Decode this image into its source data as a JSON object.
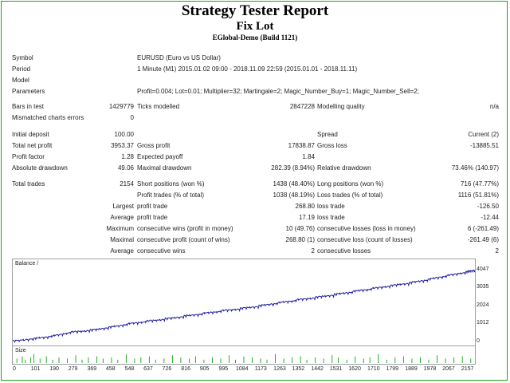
{
  "header": {
    "title": "Strategy Tester Report",
    "subtitle": "Fix Lot",
    "build": "EGlobal-Demo (Build 1121)"
  },
  "info": {
    "symbol_label": "Symbol",
    "symbol_value": "EURUSD (Euro vs US Dollar)",
    "period_label": "Period",
    "period_value": "1 Minute (M1) 2015.01.02 09:00 - 2018.11.09 22:59 (2015.01.01 - 2018.11.11)",
    "model_label": "Model",
    "model_value": "",
    "params_label": "Parameters",
    "params_value": "Profit=0.004; Lot=0.01; Multiplier=32; Martingale=2; Magic_Number_Buy=1; Magic_Number_Sell=2;"
  },
  "stats": {
    "bars_label": "Bars in test",
    "bars_value": "1429779",
    "ticks_label": "Ticks modelled",
    "ticks_value": "2847228",
    "quality_label": "Modelling quality",
    "quality_value": "n/a",
    "mismatch_label": "Mismatched charts errors",
    "mismatch_value": "0",
    "deposit_label": "Initial deposit",
    "deposit_value": "100.00",
    "spread_label": "Spread",
    "spread_value": "Current (2)",
    "netprofit_label": "Total net profit",
    "netprofit_value": "3953.37",
    "grossprofit_label": "Gross profit",
    "grossprofit_value": "17838.87",
    "grossloss_label": "Gross loss",
    "grossloss_value": "-13885.51",
    "pf_label": "Profit factor",
    "pf_value": "1.28",
    "payoff_label": "Expected payoff",
    "payoff_value": "1.84",
    "absdd_label": "Absolute drawdown",
    "absdd_value": "49.06",
    "maxdd_label": "Maximal drawdown",
    "maxdd_value": "282.39 (8.94%)",
    "reldd_label": "Relative drawdown",
    "reldd_value": "73.46% (140.97)",
    "trades_label": "Total trades",
    "trades_value": "2154",
    "short_label": "Short positions (won %)",
    "short_value": "1438 (48.40%)",
    "long_label": "Long positions (won %)",
    "long_value": "716 (47.77%)",
    "profit_trades_label": "Profit trades (% of total)",
    "profit_trades_value": "1038 (48.19%)",
    "loss_trades_label": "Loss trades (% of total)",
    "loss_trades_value": "1116 (51.81%)",
    "largest_label": "Largest",
    "largest_profit_label": "profit trade",
    "largest_profit_value": "268.80",
    "largest_loss_label": "loss trade",
    "largest_loss_value": "-126.50",
    "average_label": "Average",
    "average_profit_label": "profit trade",
    "average_profit_value": "17.19",
    "average_loss_label": "loss trade",
    "average_loss_value": "-12.44",
    "maximum_label": "Maximum",
    "max_cw_label": "consecutive wins (profit in money)",
    "max_cw_value": "10 (49.76)",
    "max_cl_label": "consecutive losses (loss in money)",
    "max_cl_value": "6 (-261.49)",
    "maximal_label": "Maximal",
    "maximal_cp_label": "consecutive profit (count of wins)",
    "maximal_cp_value": "268.80 (1)",
    "maximal_cl_label": "consecutive loss (count of losses)",
    "maximal_cl_value": "-261.49 (6)",
    "average2_label": "Average",
    "avg_cw_label": "consecutive wins",
    "avg_cw_value": "2",
    "avg_cl_label": "consecutive losses",
    "avg_cl_value": "2"
  },
  "chart_data": {
    "type": "line",
    "title": "Balance /",
    "size_label": "Size",
    "x_ticks": [
      "0",
      "101",
      "190",
      "279",
      "369",
      "458",
      "548",
      "637",
      "726",
      "816",
      "905",
      "995",
      "1084",
      "1173",
      "1263",
      "1352",
      "1442",
      "1531",
      "1620",
      "1710",
      "1799",
      "1889",
      "1978",
      "2067",
      "2157"
    ],
    "y_ticks": [
      "4047",
      "3035",
      "2024",
      "1012",
      "0"
    ],
    "ylim": [
      0,
      4300
    ],
    "xlim": [
      0,
      2200
    ],
    "series": [
      {
        "color": "#1c1ca0",
        "x": [
          0,
          101,
          190,
          279,
          369,
          458,
          548,
          637,
          726,
          816,
          905,
          995,
          1084,
          1173,
          1263,
          1352,
          1442,
          1531,
          1620,
          1710,
          1799,
          1889,
          1978,
          2067,
          2157,
          2200
        ],
        "y": [
          100,
          240,
          380,
          600,
          700,
          860,
          1050,
          1200,
          1330,
          1480,
          1630,
          1780,
          1900,
          2050,
          2220,
          2380,
          2520,
          2680,
          2850,
          3010,
          3170,
          3330,
          3520,
          3730,
          3930,
          4050
        ]
      }
    ],
    "size_series": {
      "color": "#2ea82e",
      "x": [
        20,
        45,
        60,
        85,
        100,
        130,
        160,
        190,
        220,
        260,
        300,
        330,
        360,
        400,
        430,
        470,
        500,
        540,
        580,
        610,
        650,
        680,
        720,
        760,
        800,
        840,
        870,
        910,
        950,
        990,
        1030,
        1060,
        1100,
        1140,
        1180,
        1210,
        1250,
        1290,
        1330,
        1370,
        1400,
        1440,
        1480,
        1520,
        1550,
        1590,
        1630,
        1670,
        1700,
        1740,
        1780,
        1820,
        1860,
        1900,
        1940,
        1980,
        2020,
        2060,
        2100,
        2140,
        2180
      ],
      "y": [
        0.4,
        0.6,
        0.3,
        0.5,
        0.8,
        0.4,
        0.6,
        0.3,
        0.5,
        0.4,
        0.7,
        0.3,
        0.5,
        0.6,
        0.4,
        0.5,
        0.3,
        0.8,
        0.4,
        0.5,
        0.6,
        0.3,
        0.4,
        0.7,
        0.5,
        0.4,
        0.6,
        0.3,
        0.5,
        0.4,
        0.7,
        0.3,
        0.6,
        0.5,
        0.4,
        0.3,
        0.8,
        0.4,
        0.5,
        0.6,
        0.3,
        0.5,
        0.4,
        0.7,
        0.5,
        0.3,
        0.6,
        0.4,
        0.5,
        0.8,
        0.3,
        0.5,
        0.6,
        0.4,
        0.5,
        0.3,
        0.7,
        0.4,
        0.5,
        0.6,
        0.4
      ]
    }
  }
}
